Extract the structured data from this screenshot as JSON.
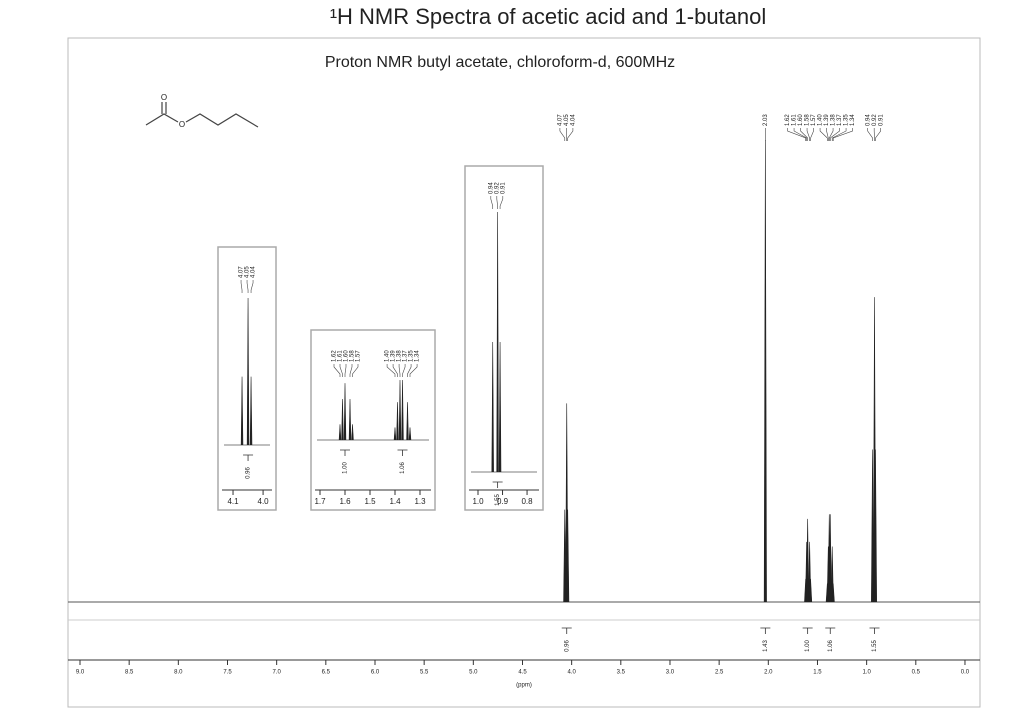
{
  "chart_data": {
    "type": "nmr",
    "title": "¹H NMR Spectra of acetic acid and 1-butanol",
    "subtitle": "Proton NMR butyl acetate, chloroform-d, 600MHz",
    "x_label": "(ppm)",
    "structure_atoms": [
      "O",
      "O"
    ],
    "xlim": [
      9.12,
      -0.15
    ],
    "xticks": [
      {
        "value": 9,
        "label": "9.0"
      },
      8.5,
      {
        "value": 8,
        "label": "8.0"
      },
      7.5,
      {
        "value": 7,
        "label": "7.0"
      },
      6.5,
      {
        "value": 6,
        "label": "6.0"
      },
      5.5,
      {
        "value": 5,
        "label": "5.0"
      },
      4.5,
      {
        "value": 4,
        "label": "4.0"
      },
      3.5,
      {
        "value": 3,
        "label": "3.0"
      },
      2.5,
      {
        "value": 2,
        "label": "2.0"
      },
      1.5,
      {
        "value": 1,
        "label": "1.0"
      },
      0.5,
      {
        "value": 0,
        "label": "0.0"
      }
    ],
    "peaks": [
      {
        "shift": 4.07,
        "label": "4.07",
        "height": 0.2
      },
      {
        "shift": 4.05,
        "label": "4.05",
        "height": 0.43
      },
      {
        "shift": 4.04,
        "label": "4.04",
        "height": 0.2
      },
      {
        "shift": 2.03,
        "label": "2.03",
        "height": 1
      },
      {
        "shift": 1.62,
        "label": "1.62",
        "height": 0.05
      },
      {
        "shift": 1.61,
        "label": "1.61",
        "height": 0.13
      },
      {
        "shift": 1.6,
        "label": "1.60",
        "height": 0.18
      },
      {
        "shift": 1.58,
        "label": "1.58",
        "height": 0.13
      },
      {
        "shift": 1.57,
        "label": "1.57",
        "height": 0.05
      },
      {
        "shift": 1.4,
        "label": "1.40",
        "height": 0.04
      },
      {
        "shift": 1.39,
        "label": "1.39",
        "height": 0.12
      },
      {
        "shift": 1.38,
        "label": "1.38",
        "height": 0.19
      },
      {
        "shift": 1.37,
        "label": "1.37",
        "height": 0.19
      },
      {
        "shift": 1.35,
        "label": "1.35",
        "height": 0.12
      },
      {
        "shift": 1.34,
        "label": "1.34",
        "height": 0.04
      },
      {
        "shift": 0.94,
        "label": "0.94",
        "height": 0.33
      },
      {
        "shift": 0.92,
        "label": "0.92",
        "height": 0.66
      },
      {
        "shift": 0.91,
        "label": "0.91",
        "height": 0.33
      }
    ],
    "integrals": [
      {
        "center": 4.05,
        "value": 0.96,
        "label": "0.96"
      },
      {
        "center": 2.03,
        "value": 1.43,
        "label": "1.43"
      },
      {
        "center": 1.6,
        "value": 1,
        "label": "1.00"
      },
      {
        "center": 1.37,
        "value": 1.06,
        "label": "1.06"
      },
      {
        "center": 0.92,
        "value": 1.55,
        "label": "1.55"
      }
    ],
    "insets": [
      {
        "xlim": [
          4.15,
          3.957
        ],
        "xticks": [
          4.1,
          {
            "value": 4,
            "label": "4.0"
          }
        ]
      },
      {
        "xlim": [
          1.736,
          1.24
        ],
        "xticks": [
          1.7,
          1.6,
          1.5,
          1.4,
          1.3
        ]
      },
      {
        "xlim": [
          1.053,
          0.735
        ],
        "xticks": [
          {
            "value": 1,
            "label": "1.0"
          },
          0.9,
          0.8
        ]
      }
    ]
  }
}
